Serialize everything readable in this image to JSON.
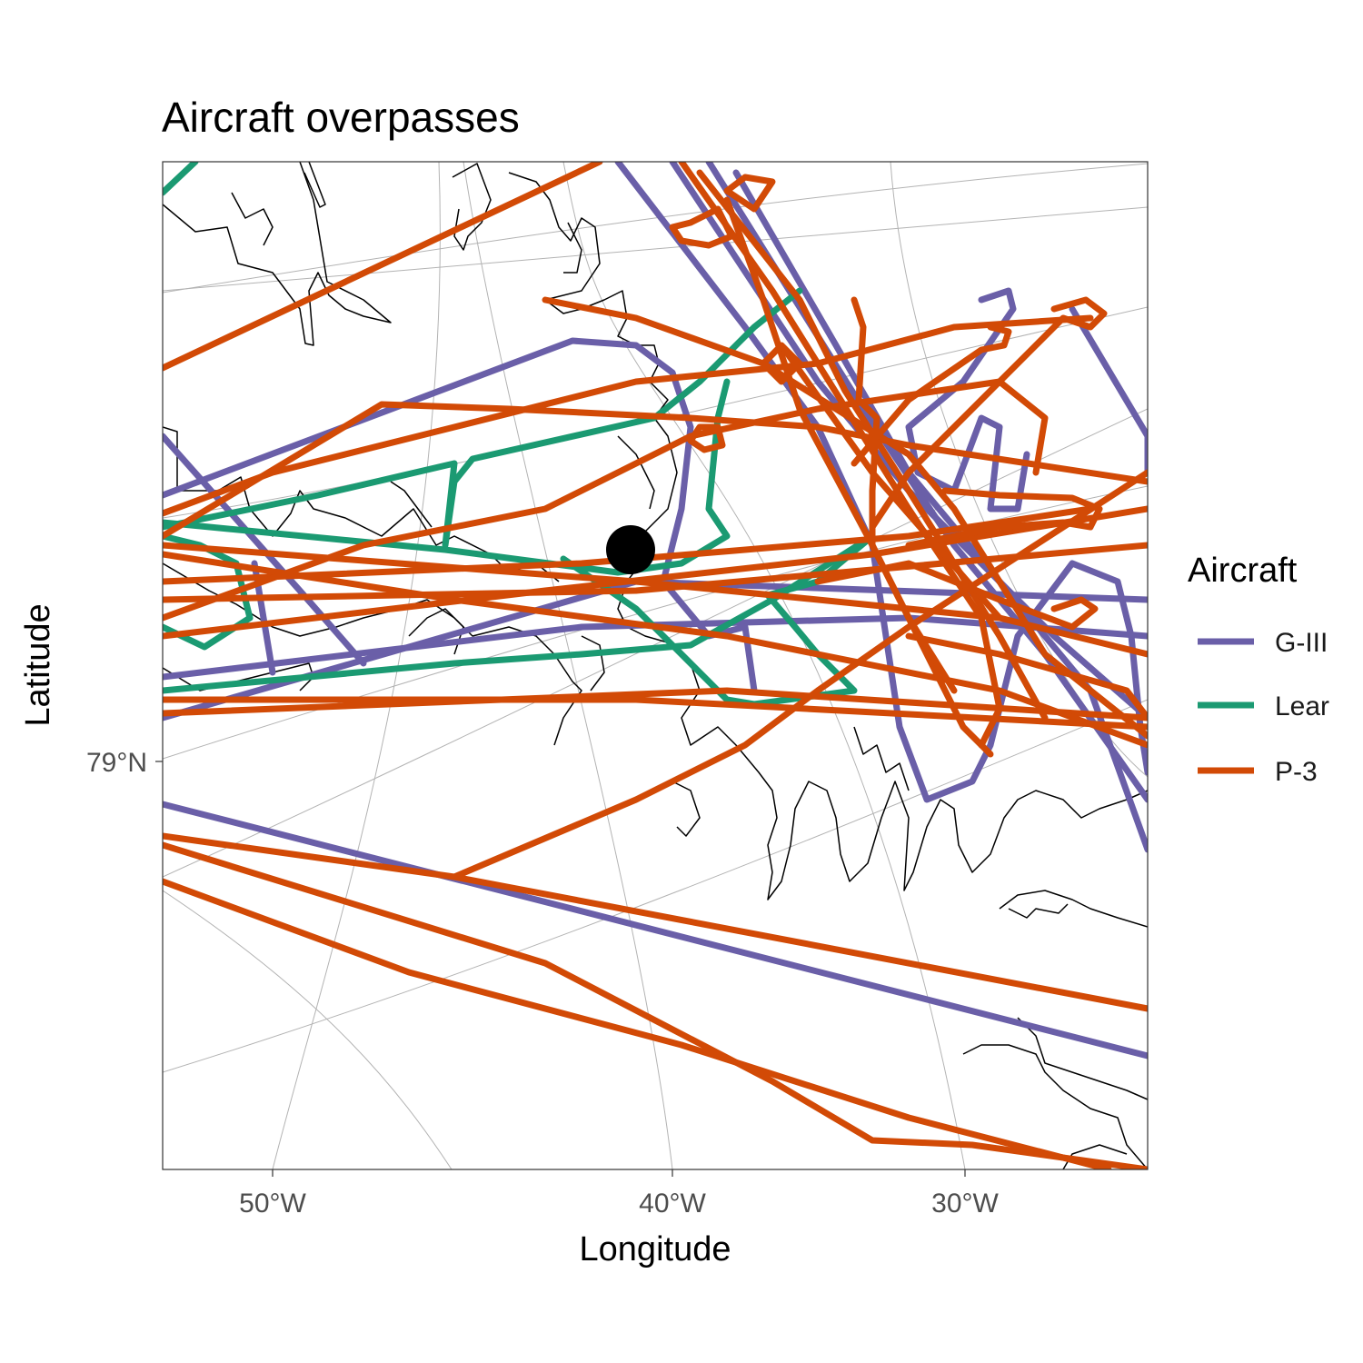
{
  "title": "Aircraft overpasses",
  "x_axis": {
    "title": "Longitude",
    "ticks": [
      "50°W",
      "40°W",
      "30°W"
    ]
  },
  "y_axis": {
    "title": "Latitude",
    "ticks": [
      "79°N"
    ]
  },
  "legend": {
    "title": "Aircraft",
    "placement": "right",
    "items": [
      {
        "label": "G-III",
        "color": "#6a5fa8"
      },
      {
        "label": "Lear",
        "color": "#1b9a72"
      },
      {
        "label": "P-3",
        "color": "#d24a06"
      }
    ]
  },
  "colors": {
    "G-III": "#6a5fa8",
    "Lear": "#1b9a72",
    "P-3": "#d24a06",
    "site": "#000000"
  },
  "map": {
    "grid": true,
    "marker": "filled black circle"
  }
}
